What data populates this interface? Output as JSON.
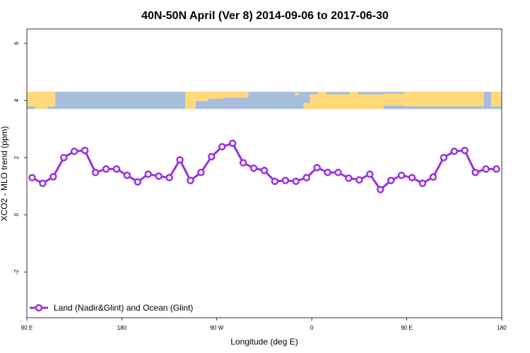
{
  "chart_data": {
    "type": "line",
    "title": "40N-50N April (Ver 8)   2014-09-06 to 2017-06-30",
    "xlabel": "Longitude (deg E)",
    "ylabel": "XCO2 - MLO trend (ppm)",
    "xlim": [
      90,
      540
    ],
    "ylim": [
      -3.6,
      6.5
    ],
    "x_ticks": [
      {
        "value": 90,
        "label": "90 E"
      },
      {
        "value": 180,
        "label": "180"
      },
      {
        "value": 270,
        "label": "90 W"
      },
      {
        "value": 360,
        "label": "0"
      },
      {
        "value": 450,
        "label": "90 E"
      },
      {
        "value": 540,
        "label": "180"
      }
    ],
    "y_ticks": [
      {
        "value": -2,
        "label": "-2"
      },
      {
        "value": 0,
        "label": "0"
      },
      {
        "value": 2,
        "label": "2"
      },
      {
        "value": 4,
        "label": "4"
      },
      {
        "value": 6,
        "label": "6"
      }
    ],
    "legend_position": "bottom-left",
    "map_strip": {
      "y_range": [
        3.7,
        4.3
      ],
      "land_color": "#ffd97a",
      "ocean_color": "#a7bddc"
    },
    "series": [
      {
        "name": "Land (Nadir&Glint) and Ocean (Glint)",
        "color": "#9b30e0",
        "x": [
          95,
          105,
          115,
          125,
          135,
          145,
          155,
          165,
          175,
          185,
          195,
          205,
          215,
          225,
          235,
          245,
          255,
          265,
          275,
          285,
          295,
          305,
          315,
          325,
          335,
          345,
          355,
          365,
          375,
          385,
          395,
          405,
          415,
          425,
          435,
          445,
          455,
          465,
          475,
          485,
          495,
          505,
          515,
          525,
          535
        ],
        "y": [
          1.3,
          1.1,
          1.33,
          2.0,
          2.22,
          2.25,
          1.48,
          1.6,
          1.6,
          1.38,
          1.15,
          1.42,
          1.35,
          1.3,
          1.92,
          1.2,
          1.48,
          2.03,
          2.38,
          2.5,
          1.82,
          1.63,
          1.55,
          1.17,
          1.2,
          1.17,
          1.3,
          1.65,
          1.48,
          1.48,
          1.28,
          1.22,
          1.42,
          0.88,
          1.2,
          1.38,
          1.3,
          1.1,
          1.32,
          2.0,
          2.22,
          2.25,
          1.48,
          1.6,
          1.6
        ]
      }
    ]
  }
}
